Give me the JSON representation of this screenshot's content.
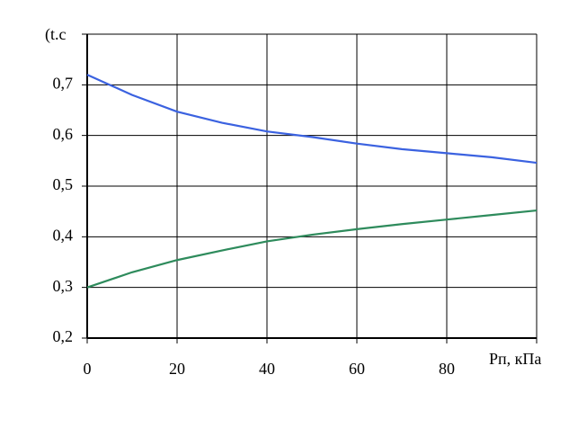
{
  "chart_data": {
    "type": "line",
    "y_label": "(t.c",
    "x_label": "Рп, кПа",
    "x": [
      0,
      10,
      20,
      30,
      40,
      50,
      60,
      70,
      80,
      90,
      100
    ],
    "series": [
      {
        "color": "#3b62e0",
        "values": [
          0.72,
          0.68,
          0.647,
          0.625,
          0.608,
          0.597,
          0.584,
          0.573,
          0.565,
          0.557,
          0.546
        ]
      },
      {
        "color": "#2e8b5c",
        "values": [
          0.3,
          0.33,
          0.354,
          0.373,
          0.391,
          0.404,
          0.415,
          0.425,
          0.434,
          0.443,
          0.452
        ]
      }
    ],
    "xlim": [
      0,
      100
    ],
    "xticks": [
      0,
      20,
      40,
      60,
      80,
      {
        "value": 100,
        "label": ""
      }
    ],
    "ylim": [
      0.2,
      0.8
    ],
    "yticks": [
      {
        "value": 0.2,
        "label": "0,2"
      },
      {
        "value": 0.3,
        "label": "0,3"
      },
      {
        "value": 0.4,
        "label": "0,4"
      },
      {
        "value": 0.5,
        "label": "0,5"
      },
      {
        "value": 0.6,
        "label": "0,6"
      },
      {
        "value": 0.7,
        "label": "0,7"
      },
      {
        "value": 0.8,
        "label": ""
      }
    ],
    "grid": true
  }
}
